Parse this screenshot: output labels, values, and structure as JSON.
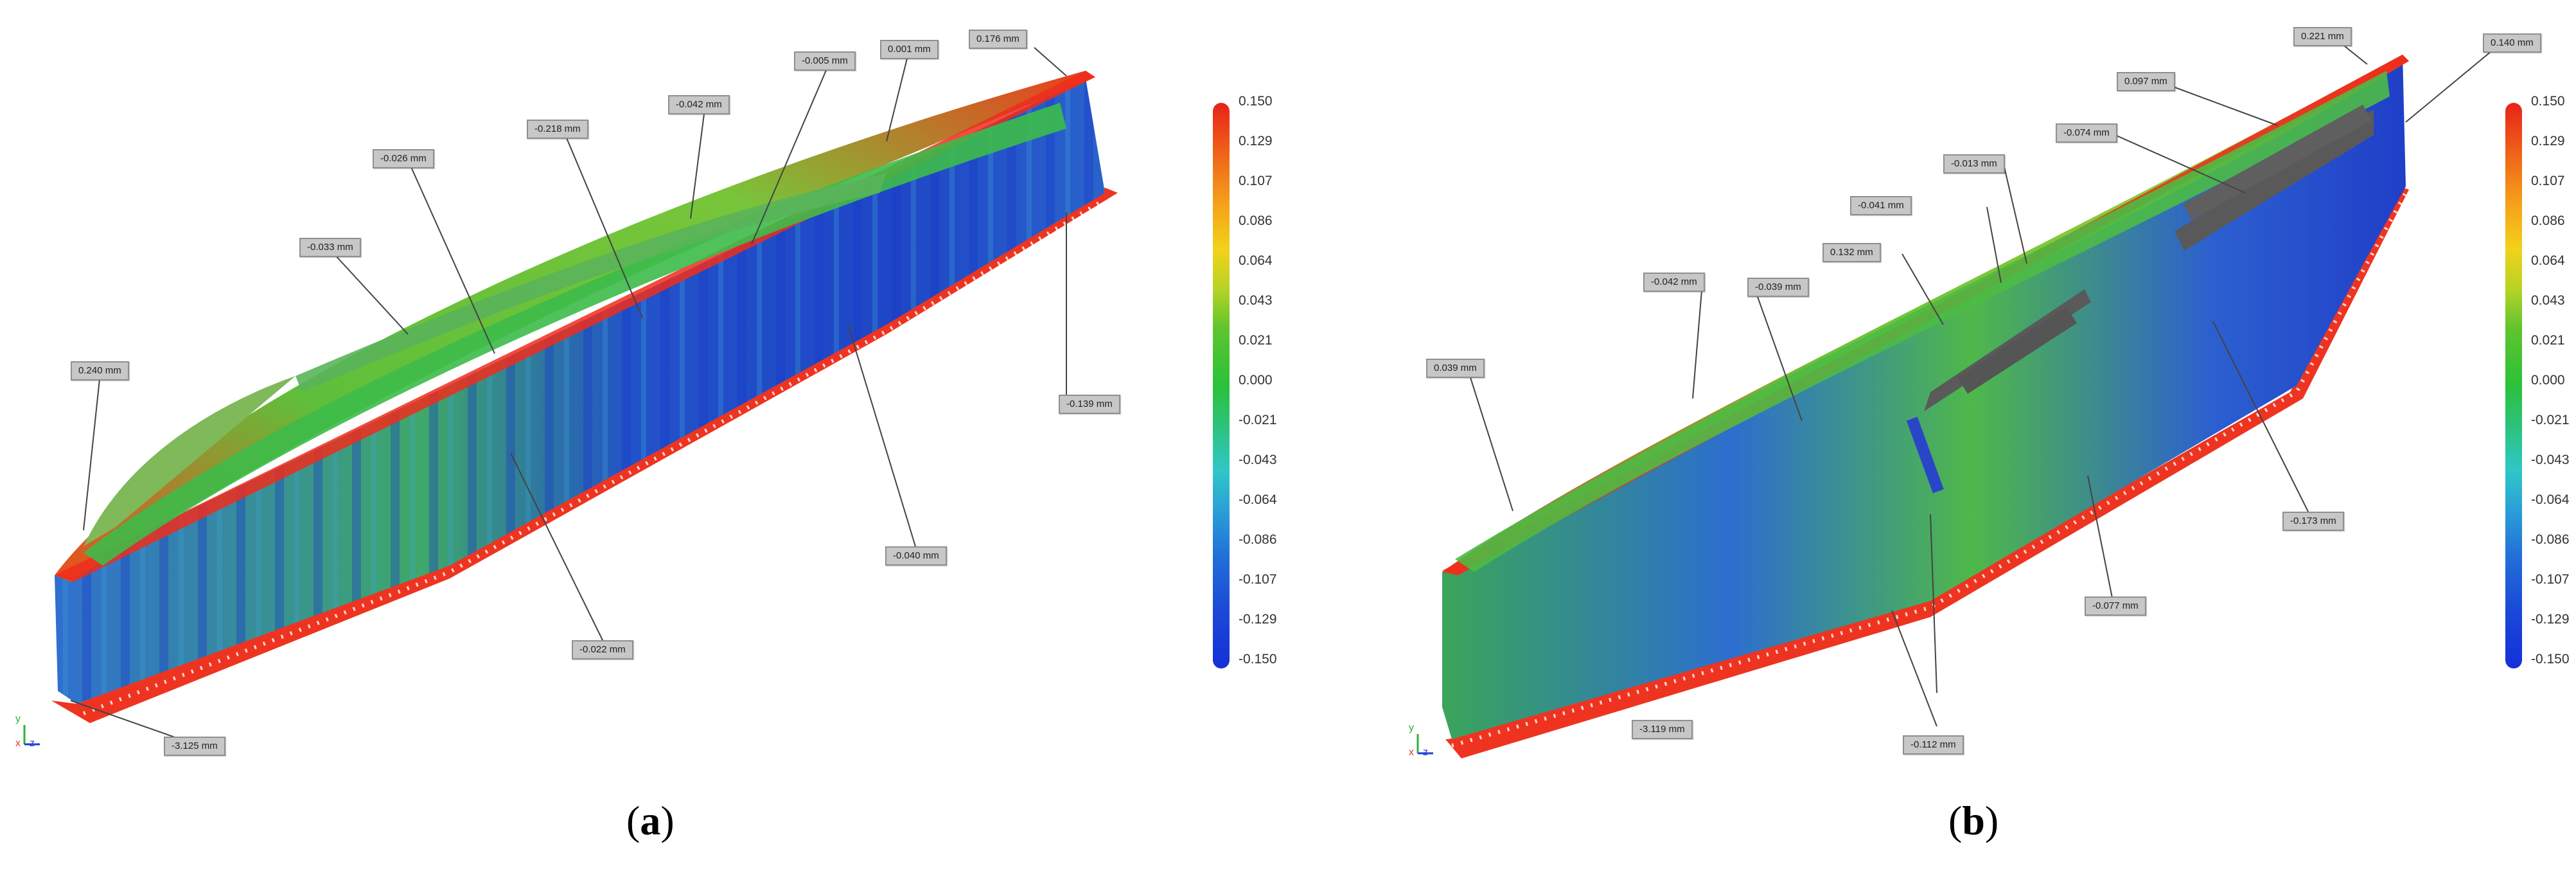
{
  "panel_a": {
    "caption_open": "(",
    "caption_letter": "a",
    "caption_close": ")",
    "callouts": [
      "0.176  mm",
      "0.001  mm",
      "-0.005  mm",
      "-0.042  mm",
      "-0.218  mm",
      "-0.026  mm",
      "-0.033  mm",
      "0.240  mm",
      "-0.139  mm",
      "-0.040  mm",
      "-0.022  mm",
      "-3.125  mm"
    ],
    "scale_ticks": [
      "0.150",
      "0.129",
      "0.107",
      "0.086",
      "0.064",
      "0.043",
      "0.021",
      "0.000",
      "-0.021",
      "-0.043",
      "-0.064",
      "-0.086",
      "-0.107",
      "-0.129",
      "-0.150"
    ]
  },
  "panel_b": {
    "caption_open": "(",
    "caption_letter": "b",
    "caption_close": ")",
    "callouts": [
      "0.221  mm",
      "0.140  mm",
      "0.097  mm",
      "-0.074  mm",
      "-0.013  mm",
      "-0.041  mm",
      "0.132  mm",
      "-0.042  mm",
      "-0.039  mm",
      "0.039  mm",
      "-0.173  mm",
      "-0.077  mm",
      "-0.112  mm",
      "-3.119  mm"
    ],
    "scale_ticks": [
      "0.150",
      "0.129",
      "0.107",
      "0.086",
      "0.064",
      "0.043",
      "0.021",
      "0.000",
      "-0.021",
      "-0.043",
      "-0.064",
      "-0.086",
      "-0.107",
      "-0.129",
      "-0.150"
    ]
  },
  "axis_labels": {
    "y": "y",
    "x": "x",
    "z": "z"
  },
  "colors": {
    "scale_top": "#e8221a",
    "scale_mid": "#2bc13a",
    "scale_bottom": "#1530d8",
    "callout_bg": "#c7c7c7"
  }
}
